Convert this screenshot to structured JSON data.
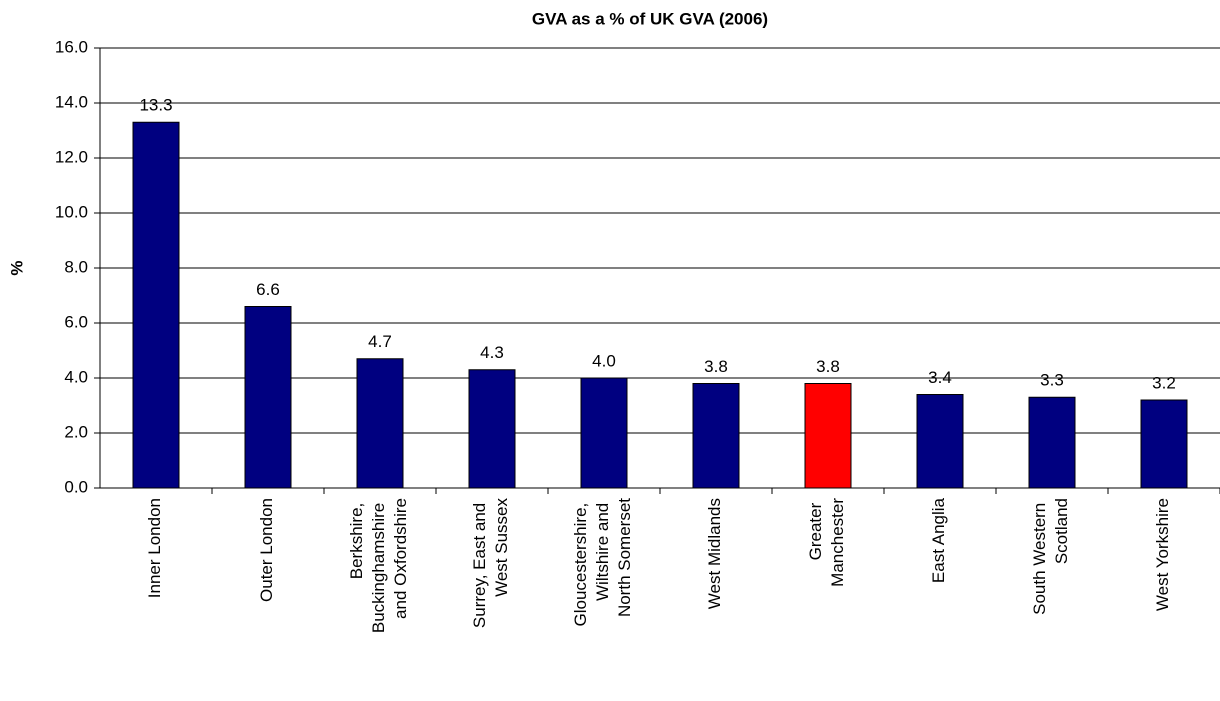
{
  "chart_data": {
    "type": "bar",
    "title": "GVA as a % of UK GVA (2006)",
    "y_label": "%",
    "categories": [
      "Inner London",
      "Outer London",
      "Berkshire,\nBuckinghamshire\nand Oxfordshire",
      "Surrey, East and\nWest Sussex",
      "Gloucestershire,\nWiltshire and\nNorth Somerset",
      "West Midlands",
      "Greater\nManchester",
      "East Anglia",
      "South Western\nScotland",
      "West Yorkshire"
    ],
    "values": [
      13.3,
      6.6,
      4.7,
      4.3,
      4.0,
      3.8,
      3.8,
      3.4,
      3.3,
      3.2
    ],
    "value_labels": [
      "13.3",
      "6.6",
      "4.7",
      "4.3",
      "4.0",
      "3.8",
      "3.8",
      "3.4",
      "3.3",
      "3.2"
    ],
    "colors": [
      "#000080",
      "#000080",
      "#000080",
      "#000080",
      "#000080",
      "#000080",
      "#ff0000",
      "#000080",
      "#000080",
      "#000080"
    ],
    "ylim": [
      0,
      16
    ],
    "yticks": [
      {
        "value": 0,
        "label": "0.0"
      },
      {
        "value": 2,
        "label": "2.0"
      },
      {
        "value": 4,
        "label": "4.0"
      },
      {
        "value": 6,
        "label": "6.0"
      },
      {
        "value": 8,
        "label": "8.0"
      },
      {
        "value": 10,
        "label": "10.0"
      },
      {
        "value": 12,
        "label": "12.0"
      },
      {
        "value": 14,
        "label": "14.0"
      },
      {
        "value": 16,
        "label": "16.0"
      }
    ],
    "grid": true
  }
}
